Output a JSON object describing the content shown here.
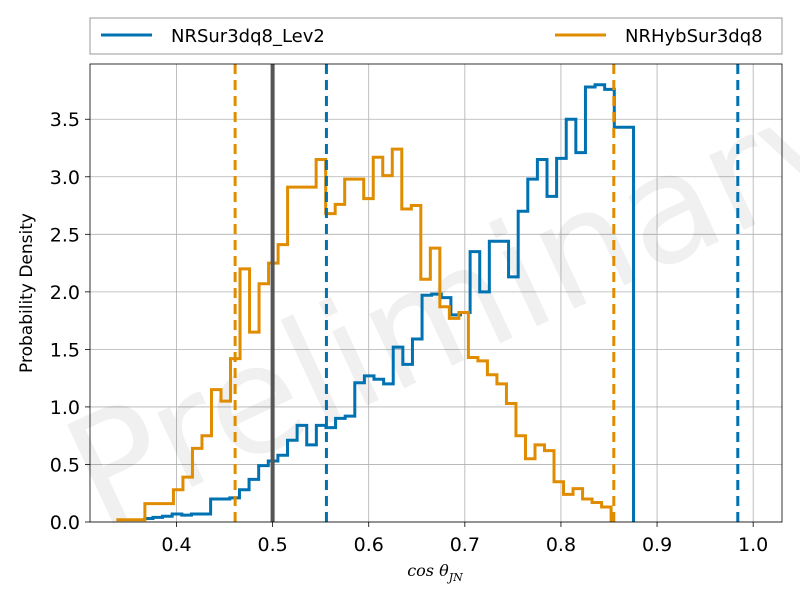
{
  "chart_data": {
    "type": "histogram",
    "watermark": "Preliminary",
    "xlabel": "cos θ",
    "xlabel_sub": "JN",
    "ylabel": "Probability Density",
    "xlim": [
      0.31,
      1.03
    ],
    "ylim": [
      0,
      3.98
    ],
    "grid": true,
    "legend_position": "above-plot",
    "x_ticks": [
      0.4,
      0.5,
      0.6,
      0.7,
      0.8,
      0.9,
      1.0
    ],
    "x_tick_labels": [
      "0.4",
      "0.5",
      "0.6",
      "0.7",
      "0.8",
      "0.9",
      "1.0"
    ],
    "y_ticks": [
      0.0,
      0.5,
      1.0,
      1.5,
      2.0,
      2.5,
      3.0,
      3.5
    ],
    "y_tick_labels": [
      "0.0",
      "0.5",
      "1.0",
      "1.5",
      "2.0",
      "2.5",
      "3.0",
      "3.5"
    ],
    "injection_value": 0.5,
    "injection_color": "#555555",
    "series": [
      {
        "name": "NRSur3dq8_Lev2",
        "color": "#0072b2",
        "bin_start": 0.3655,
        "bin_width": 0.01,
        "values": [
          0.03,
          0.04,
          0.05,
          0.07,
          0.06,
          0.07,
          0.07,
          0.2,
          0.2,
          0.21,
          0.28,
          0.37,
          0.49,
          0.53,
          0.58,
          0.71,
          0.84,
          0.67,
          0.84,
          0.82,
          0.9,
          0.92,
          1.21,
          1.27,
          1.24,
          1.2,
          1.52,
          1.37,
          1.59,
          1.97,
          1.98,
          1.95,
          1.8,
          1.82,
          2.35,
          2.0,
          2.44,
          2.44,
          2.13,
          2.7,
          2.98,
          3.15,
          2.83,
          3.16,
          3.5,
          3.21,
          3.78,
          3.8,
          3.76,
          3.43,
          3.43
        ],
        "credible_interval": [
          0.556,
          0.984
        ]
      },
      {
        "name": "NRHybSur3dq8",
        "color": "#e08c00",
        "bin_start": 0.3374,
        "bin_width": 0.0099,
        "values": [
          0.02,
          0.02,
          0.02,
          0.16,
          0.16,
          0.16,
          0.28,
          0.39,
          0.64,
          0.75,
          1.15,
          1.05,
          1.42,
          2.2,
          1.65,
          2.07,
          2.25,
          2.41,
          2.91,
          2.91,
          2.91,
          3.15,
          2.68,
          2.76,
          2.98,
          2.98,
          2.81,
          3.17,
          3.01,
          3.24,
          2.72,
          2.75,
          2.11,
          2.38,
          1.87,
          1.77,
          1.82,
          1.43,
          1.4,
          1.28,
          1.2,
          1.03,
          0.75,
          0.55,
          0.67,
          0.62,
          0.35,
          0.24,
          0.29,
          0.2,
          0.17,
          0.13
        ],
        "credible_interval": [
          0.461,
          0.855
        ]
      }
    ]
  }
}
